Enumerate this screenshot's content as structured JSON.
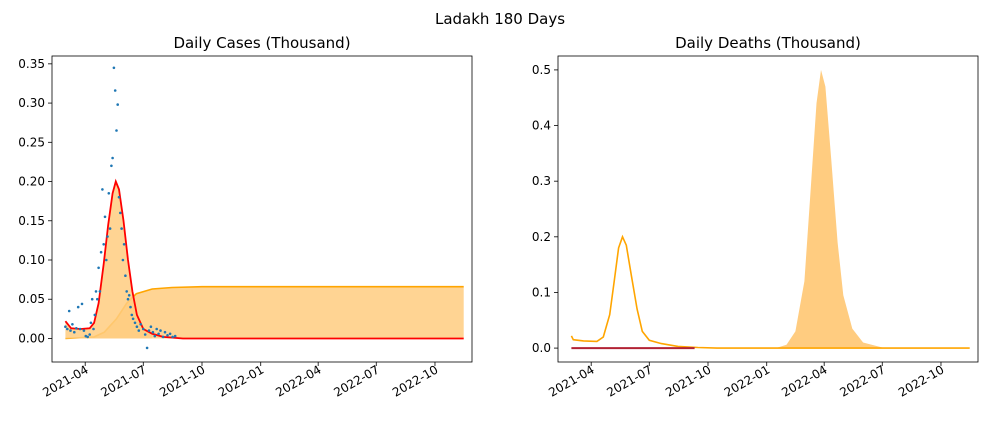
{
  "figure": {
    "title": "Ladakh 180 Days"
  },
  "chart_data": [
    {
      "type": "line",
      "title": "Daily Cases (Thousand)",
      "xlim": [
        "2021-02-08",
        "2022-11-28"
      ],
      "ylim": [
        -0.03,
        0.36
      ],
      "x_ticks": [
        "2021-04",
        "2021-07",
        "2021-10",
        "2022-01",
        "2022-04",
        "2022-07",
        "2022-10"
      ],
      "y_ticks": [
        0.0,
        0.05,
        0.1,
        0.15,
        0.2,
        0.25,
        0.3,
        0.35
      ],
      "colors": {
        "scatter": "#1f77b4",
        "fit": "#ff0000",
        "band": "#ffa500",
        "band_fill": "#ffcc80"
      },
      "series": [
        {
          "kind": "fit-line",
          "points": [
            [
              "2021-03-01",
              0.022
            ],
            [
              "2021-03-10",
              0.013
            ],
            [
              "2021-03-25",
              0.012
            ],
            [
              "2021-04-08",
              0.013
            ],
            [
              "2021-04-15",
              0.02
            ],
            [
              "2021-04-22",
              0.045
            ],
            [
              "2021-04-30",
              0.095
            ],
            [
              "2021-05-07",
              0.145
            ],
            [
              "2021-05-14",
              0.185
            ],
            [
              "2021-05-19",
              0.2
            ],
            [
              "2021-05-24",
              0.19
            ],
            [
              "2021-05-31",
              0.15
            ],
            [
              "2021-06-07",
              0.1
            ],
            [
              "2021-06-14",
              0.06
            ],
            [
              "2021-06-21",
              0.03
            ],
            [
              "2021-07-01",
              0.012
            ],
            [
              "2021-07-15",
              0.006
            ],
            [
              "2021-08-01",
              0.002
            ],
            [
              "2021-09-01",
              0.0
            ],
            [
              "2022-11-15",
              0.0
            ]
          ]
        },
        {
          "kind": "cumulative-band",
          "points": [
            [
              "2021-03-01",
              0.0
            ],
            [
              "2021-04-15",
              0.002
            ],
            [
              "2021-05-01",
              0.008
            ],
            [
              "2021-05-20",
              0.025
            ],
            [
              "2021-06-05",
              0.045
            ],
            [
              "2021-06-20",
              0.057
            ],
            [
              "2021-07-15",
              0.063
            ],
            [
              "2021-08-15",
              0.065
            ],
            [
              "2021-10-01",
              0.066
            ],
            [
              "2022-11-15",
              0.066
            ]
          ]
        },
        {
          "kind": "scatter",
          "points": [
            [
              "2021-03-01",
              0.015
            ],
            [
              "2021-03-04",
              0.012
            ],
            [
              "2021-03-07",
              0.035
            ],
            [
              "2021-03-09",
              0.01
            ],
            [
              "2021-03-12",
              0.018
            ],
            [
              "2021-03-15",
              0.008
            ],
            [
              "2021-03-18",
              0.013
            ],
            [
              "2021-03-21",
              0.04
            ],
            [
              "2021-03-24",
              0.012
            ],
            [
              "2021-03-27",
              0.044
            ],
            [
              "2021-03-30",
              0.01
            ],
            [
              "2021-04-02",
              0.003
            ],
            [
              "2021-04-05",
              0.002
            ],
            [
              "2021-04-08",
              0.005
            ],
            [
              "2021-04-10",
              0.02
            ],
            [
              "2021-04-12",
              0.05
            ],
            [
              "2021-04-14",
              0.012
            ],
            [
              "2021-04-16",
              0.03
            ],
            [
              "2021-04-18",
              0.06
            ],
            [
              "2021-04-20",
              0.05
            ],
            [
              "2021-04-22",
              0.09
            ],
            [
              "2021-04-24",
              0.06
            ],
            [
              "2021-04-26",
              0.11
            ],
            [
              "2021-04-28",
              0.19
            ],
            [
              "2021-04-30",
              0.12
            ],
            [
              "2021-05-02",
              0.155
            ],
            [
              "2021-05-04",
              0.1
            ],
            [
              "2021-05-06",
              0.13
            ],
            [
              "2021-05-08",
              0.185
            ],
            [
              "2021-05-10",
              0.14
            ],
            [
              "2021-05-12",
              0.22
            ],
            [
              "2021-05-14",
              0.23
            ],
            [
              "2021-05-16",
              0.345
            ],
            [
              "2021-05-18",
              0.316
            ],
            [
              "2021-05-20",
              0.265
            ],
            [
              "2021-05-22",
              0.298
            ],
            [
              "2021-05-24",
              0.18
            ],
            [
              "2021-05-26",
              0.16
            ],
            [
              "2021-05-28",
              0.14
            ],
            [
              "2021-05-30",
              0.1
            ],
            [
              "2021-06-01",
              0.12
            ],
            [
              "2021-06-03",
              0.08
            ],
            [
              "2021-06-05",
              0.06
            ],
            [
              "2021-06-07",
              0.05
            ],
            [
              "2021-06-09",
              0.055
            ],
            [
              "2021-06-11",
              0.04
            ],
            [
              "2021-06-13",
              0.03
            ],
            [
              "2021-06-15",
              0.025
            ],
            [
              "2021-06-18",
              0.02
            ],
            [
              "2021-06-21",
              0.015
            ],
            [
              "2021-06-24",
              0.01
            ],
            [
              "2021-06-27",
              0.018
            ],
            [
              "2021-07-01",
              0.012
            ],
            [
              "2021-07-04",
              0.005
            ],
            [
              "2021-07-07",
              -0.012
            ],
            [
              "2021-07-10",
              0.01
            ],
            [
              "2021-07-13",
              0.015
            ],
            [
              "2021-07-16",
              0.008
            ],
            [
              "2021-07-19",
              0.003
            ],
            [
              "2021-07-22",
              0.012
            ],
            [
              "2021-07-25",
              0.006
            ],
            [
              "2021-07-28",
              0.01
            ],
            [
              "2021-08-01",
              0.002
            ],
            [
              "2021-08-04",
              0.008
            ],
            [
              "2021-08-08",
              0.004
            ],
            [
              "2021-08-12",
              0.006
            ],
            [
              "2021-08-16",
              0.002
            ],
            [
              "2021-08-20",
              0.003
            ]
          ]
        }
      ]
    },
    {
      "type": "area",
      "title": "Daily Deaths (Thousand)",
      "xlim": [
        "2021-02-08",
        "2022-11-28"
      ],
      "ylim": [
        -0.025,
        0.525
      ],
      "x_ticks": [
        "2021-04",
        "2021-07",
        "2021-10",
        "2022-01",
        "2022-04",
        "2022-07",
        "2022-10"
      ],
      "y_ticks": [
        0.0,
        0.1,
        0.2,
        0.3,
        0.4,
        0.5
      ],
      "colors": {
        "line": "#ffa500",
        "area_fill": "#ffcc80",
        "base": "#b22234"
      },
      "series": [
        {
          "kind": "area",
          "points": [
            [
              "2022-01-15",
              0.0
            ],
            [
              "2022-02-01",
              0.006
            ],
            [
              "2022-02-15",
              0.03
            ],
            [
              "2022-03-01",
              0.12
            ],
            [
              "2022-03-10",
              0.27
            ],
            [
              "2022-03-20",
              0.44
            ],
            [
              "2022-03-27",
              0.5
            ],
            [
              "2022-04-03",
              0.47
            ],
            [
              "2022-04-12",
              0.34
            ],
            [
              "2022-04-22",
              0.19
            ],
            [
              "2022-05-01",
              0.095
            ],
            [
              "2022-05-15",
              0.035
            ],
            [
              "2022-06-01",
              0.01
            ],
            [
              "2022-07-01",
              0.001
            ],
            [
              "2022-08-01",
              0.0
            ]
          ]
        },
        {
          "kind": "line",
          "points": [
            [
              "2021-03-01",
              0.022
            ],
            [
              "2021-03-04",
              0.015
            ],
            [
              "2021-03-20",
              0.013
            ],
            [
              "2021-04-10",
              0.012
            ],
            [
              "2021-04-20",
              0.02
            ],
            [
              "2021-04-30",
              0.06
            ],
            [
              "2021-05-07",
              0.12
            ],
            [
              "2021-05-14",
              0.18
            ],
            [
              "2021-05-20",
              0.2
            ],
            [
              "2021-05-26",
              0.185
            ],
            [
              "2021-06-03",
              0.13
            ],
            [
              "2021-06-12",
              0.07
            ],
            [
              "2021-06-20",
              0.03
            ],
            [
              "2021-07-01",
              0.014
            ],
            [
              "2021-07-20",
              0.008
            ],
            [
              "2021-08-15",
              0.003
            ],
            [
              "2021-09-15",
              0.001
            ],
            [
              "2021-10-15",
              0.0
            ],
            [
              "2022-11-15",
              0.0
            ]
          ]
        },
        {
          "kind": "base-line",
          "points": [
            [
              "2021-03-01",
              0.0
            ],
            [
              "2021-09-10",
              0.0
            ]
          ]
        }
      ]
    }
  ]
}
